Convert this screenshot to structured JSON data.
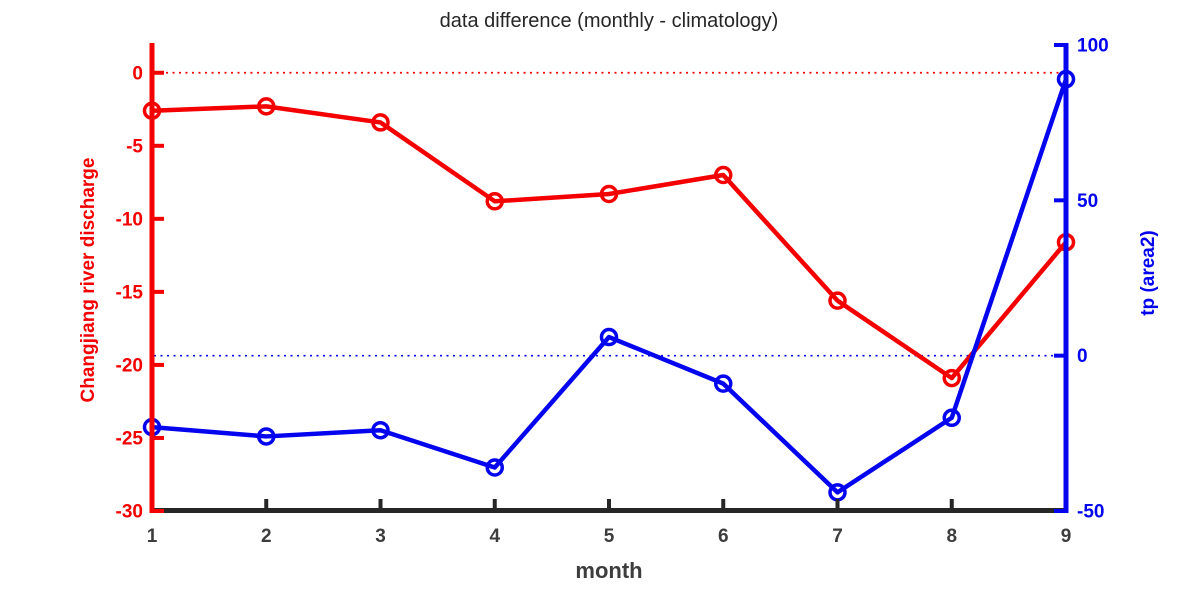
{
  "chart_data": {
    "type": "line",
    "title": "data difference (monthly - climatology)",
    "xlabel": "month",
    "x": [
      1,
      2,
      3,
      4,
      5,
      6,
      7,
      8,
      9
    ],
    "series": [
      {
        "id": "river-discharge-series",
        "axis": "left",
        "color": "#f40000",
        "marker": "open-circle",
        "values": [
          -2.6,
          -2.3,
          -3.4,
          -8.8,
          -8.3,
          -7.0,
          -15.6,
          -20.9,
          -11.6
        ]
      },
      {
        "id": "tp-series",
        "axis": "right",
        "color": "#0404ee",
        "marker": "open-circle",
        "values": [
          -23,
          -26,
          -24,
          -36,
          6,
          -9,
          -44,
          -20,
          89
        ]
      }
    ],
    "left_axis": {
      "label": "Changjiang river discharge",
      "color": "#f40000",
      "ticks": [
        0,
        -5,
        -10,
        -15,
        -20,
        -25,
        -30
      ],
      "range": [
        -30,
        1.9
      ],
      "zero_reference_line": "dotted"
    },
    "right_axis": {
      "label": "tp (area2)",
      "color": "#0404ee",
      "ticks": [
        100,
        50,
        0,
        -50
      ],
      "range": [
        -50,
        100
      ],
      "zero_reference_line": "dotted"
    },
    "x_axis": {
      "label": "month",
      "color": "#262626",
      "tick_label_color": "#3d3d3d",
      "ticks": [
        1,
        2,
        3,
        4,
        5,
        6,
        7,
        8,
        9
      ],
      "range": [
        1,
        9
      ]
    },
    "grid": false,
    "legend": null
  }
}
